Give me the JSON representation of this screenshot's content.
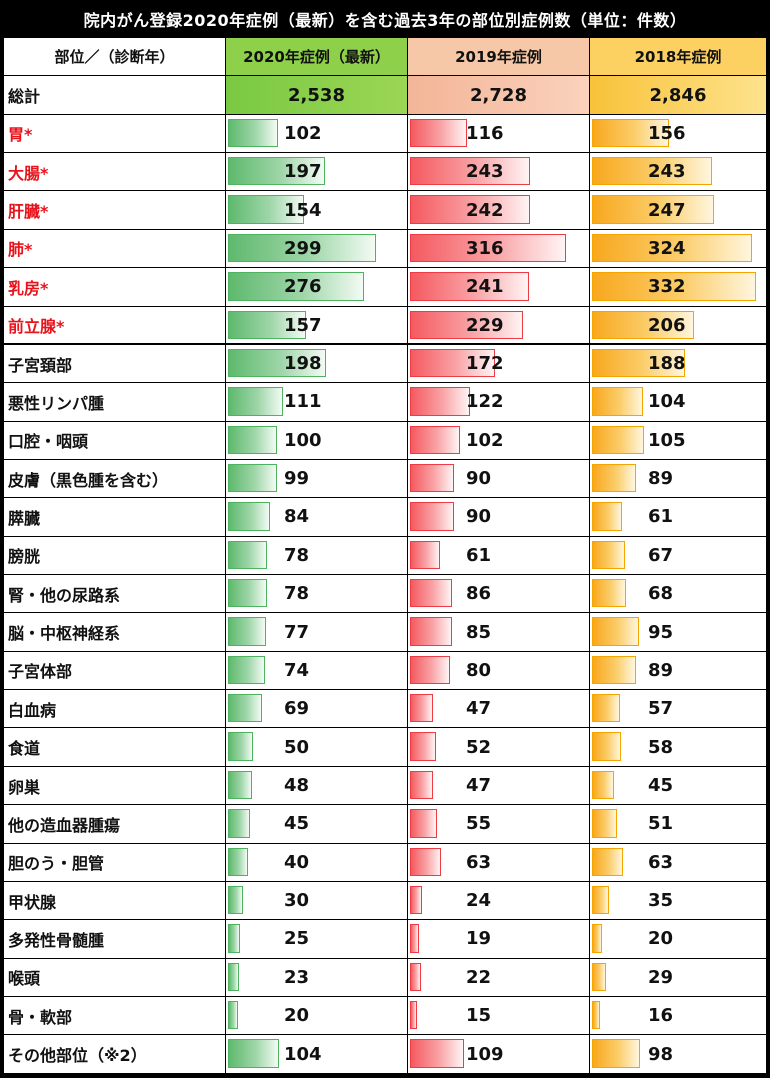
{
  "title": "院内がん登録2020年症例（最新）を含む過去3年の部位別症例数（単位：件数）",
  "chart_data": {
    "type": "table",
    "title": "院内がん登録2020年症例（最新）を含む過去3年の部位別症例数（単位：件数）",
    "header": [
      "部位／（診断年）",
      "2020年症例（最新）",
      "2019年症例",
      "2018年症例"
    ],
    "total": {
      "label": "総計",
      "values": [
        "2,538",
        "2,728",
        "2,846"
      ]
    },
    "series_colors": [
      "#4db35f",
      "#ee3b44",
      "#f5a400"
    ],
    "bar_max": 340,
    "rows": [
      {
        "label": "胃*",
        "highlight": true,
        "values": [
          102,
          116,
          156
        ]
      },
      {
        "label": "大腸*",
        "highlight": true,
        "values": [
          197,
          243,
          243
        ]
      },
      {
        "label": "肝臓*",
        "highlight": true,
        "values": [
          154,
          242,
          247
        ]
      },
      {
        "label": "肺*",
        "highlight": true,
        "values": [
          299,
          316,
          324
        ]
      },
      {
        "label": "乳房*",
        "highlight": true,
        "values": [
          276,
          241,
          332
        ]
      },
      {
        "label": "前立腺*",
        "highlight": true,
        "values": [
          157,
          229,
          206
        ]
      },
      {
        "label": "子宮頚部",
        "highlight": false,
        "values": [
          198,
          172,
          188
        ]
      },
      {
        "label": "悪性リンパ腫",
        "highlight": false,
        "values": [
          111,
          122,
          104
        ]
      },
      {
        "label": "口腔・咽頭",
        "highlight": false,
        "values": [
          100,
          102,
          105
        ]
      },
      {
        "label": "皮膚（黒色腫を含む）",
        "highlight": false,
        "values": [
          99,
          90,
          89
        ]
      },
      {
        "label": "膵臓",
        "highlight": false,
        "values": [
          84,
          90,
          61
        ]
      },
      {
        "label": "膀胱",
        "highlight": false,
        "values": [
          78,
          61,
          67
        ]
      },
      {
        "label": "腎・他の尿路系",
        "highlight": false,
        "values": [
          78,
          86,
          68
        ]
      },
      {
        "label": "脳・中枢神経系",
        "highlight": false,
        "values": [
          77,
          85,
          95
        ]
      },
      {
        "label": "子宮体部",
        "highlight": false,
        "values": [
          74,
          80,
          89
        ]
      },
      {
        "label": "白血病",
        "highlight": false,
        "values": [
          69,
          47,
          57
        ]
      },
      {
        "label": "食道",
        "highlight": false,
        "values": [
          50,
          52,
          58
        ]
      },
      {
        "label": "卵巣",
        "highlight": false,
        "values": [
          48,
          47,
          45
        ]
      },
      {
        "label": "他の造血器腫瘍",
        "highlight": false,
        "values": [
          45,
          55,
          51
        ]
      },
      {
        "label": "胆のう・胆管",
        "highlight": false,
        "values": [
          40,
          63,
          63
        ]
      },
      {
        "label": "甲状腺",
        "highlight": false,
        "values": [
          30,
          24,
          35
        ]
      },
      {
        "label": "多発性骨髄腫",
        "highlight": false,
        "values": [
          25,
          19,
          20
        ]
      },
      {
        "label": "喉頭",
        "highlight": false,
        "values": [
          23,
          22,
          29
        ]
      },
      {
        "label": "骨・軟部",
        "highlight": false,
        "values": [
          20,
          15,
          16
        ]
      },
      {
        "label": "その他部位（※2）",
        "highlight": false,
        "values": [
          104,
          109,
          98
        ]
      }
    ]
  }
}
